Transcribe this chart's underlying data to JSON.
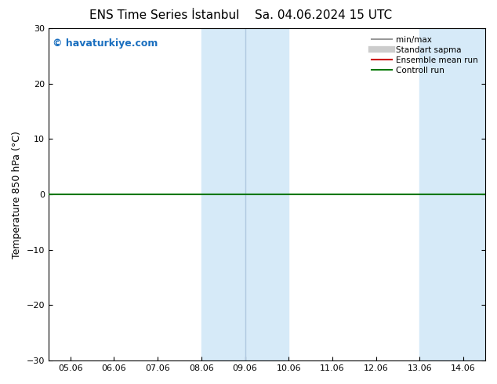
{
  "title": "ENS Time Series İstanbul",
  "title2": "Sa. 04.06.2024 15 UTC",
  "ylabel": "Temperature 850 hPa (°C)",
  "ylim": [
    -30,
    30
  ],
  "yticks": [
    -30,
    -20,
    -10,
    0,
    10,
    20,
    30
  ],
  "xtick_labels": [
    "05.06",
    "06.06",
    "07.06",
    "08.06",
    "09.06",
    "10.06",
    "11.06",
    "12.06",
    "13.06",
    "14.06"
  ],
  "xtick_positions": [
    0,
    1,
    2,
    3,
    4,
    5,
    6,
    7,
    8,
    9
  ],
  "xlim": [
    -0.5,
    9.5
  ],
  "shade_bands": [
    {
      "xmin": 3.0,
      "xmax": 5.0,
      "color": "#d6eaf8",
      "alpha": 1.0
    },
    {
      "xmin": 8.0,
      "xmax": 9.5,
      "color": "#d6eaf8",
      "alpha": 1.0
    }
  ],
  "vline_x": 4.0,
  "vline_color": "#b0c8e0",
  "vline_lw": 1.0,
  "hline_y": 0,
  "hline_color": "#007700",
  "hline_lw": 1.5,
  "watermark": "© havaturkiye.com",
  "watermark_color": "#1a6fbf",
  "watermark_fontsize": 9,
  "legend_items": [
    {
      "label": "min/max",
      "color": "#999999",
      "lw": 1.5,
      "style": "-"
    },
    {
      "label": "Standart sapma",
      "color": "#cccccc",
      "lw": 6,
      "style": "-"
    },
    {
      "label": "Ensemble mean run",
      "color": "#cc0000",
      "lw": 1.5,
      "style": "-"
    },
    {
      "label": "Controll run",
      "color": "#007700",
      "lw": 1.5,
      "style": "-"
    }
  ],
  "bg_color": "#ffffff",
  "title_fontsize": 11,
  "ylabel_fontsize": 9,
  "tick_fontsize": 8,
  "legend_fontsize": 7.5
}
